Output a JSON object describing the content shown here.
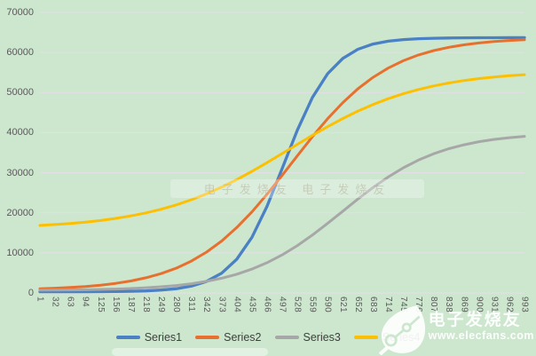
{
  "colors": {
    "background": "#cce7ce",
    "grid": "#e6dee8",
    "axis_text": "#595959",
    "legend_text": "#3f3f3f",
    "watermark_white": "rgba(255,255,255,0.93)"
  },
  "watermarks": {
    "center_text": "电子发烧友 电子发烧友",
    "corner": {
      "brand": "电子发烧友",
      "url": "www.elecfans.com",
      "logo_icon": "elecfans-leaf-circuit-logo"
    }
  },
  "chart_data": {
    "type": "line",
    "title": "",
    "xlabel": "",
    "ylabel": "",
    "ylim": [
      0,
      70000
    ],
    "y_ticks": [
      0,
      10000,
      20000,
      30000,
      40000,
      50000,
      60000,
      70000
    ],
    "grid": true,
    "legend_position": "bottom",
    "x_tick_rotation": "vertical",
    "categories": [
      "1",
      "32",
      "63",
      "94",
      "125",
      "156",
      "187",
      "218",
      "249",
      "280",
      "311",
      "342",
      "373",
      "404",
      "435",
      "466",
      "497",
      "528",
      "559",
      "590",
      "621",
      "652",
      "683",
      "714",
      "745",
      "776",
      "807",
      "838",
      "869",
      "900",
      "931",
      "962",
      "993"
    ],
    "series": [
      {
        "name": "Series1",
        "color": "#4a80c4",
        "values": [
          300,
          310,
          310,
          320,
          340,
          370,
          420,
          520,
          720,
          1070,
          1710,
          2880,
          4930,
          8410,
          13880,
          21620,
          31050,
          40650,
          48800,
          54710,
          58520,
          60810,
          62110,
          62830,
          63230,
          63450,
          63560,
          63630,
          63660,
          63680,
          63690,
          63700,
          63700
        ]
      },
      {
        "name": "Series2",
        "color": "#e8702f",
        "values": [
          1070,
          1200,
          1380,
          1620,
          1950,
          2390,
          2990,
          3780,
          4820,
          6180,
          7950,
          10190,
          12960,
          16320,
          20230,
          24640,
          29380,
          34250,
          39020,
          43490,
          47490,
          50940,
          53800,
          56120,
          57960,
          59390,
          60480,
          61300,
          61920,
          62390,
          62730,
          62990,
          63180
        ]
      },
      {
        "name": "Series3",
        "color": "#a7a7a7",
        "values": [
          680,
          710,
          750,
          800,
          880,
          980,
          1110,
          1300,
          1540,
          1870,
          2310,
          2900,
          3670,
          4680,
          5950,
          7560,
          9510,
          11830,
          14470,
          17370,
          20400,
          23430,
          26310,
          28930,
          31230,
          33160,
          34740,
          36000,
          36980,
          37740,
          38320,
          38750,
          39080
        ]
      },
      {
        "name": "Series4",
        "color": "#fdc000",
        "values": [
          16850,
          17070,
          17340,
          17670,
          18080,
          18600,
          19220,
          19980,
          20890,
          21970,
          23250,
          24730,
          26410,
          28290,
          30340,
          32520,
          34790,
          37090,
          39340,
          41500,
          43530,
          45380,
          47020,
          48470,
          49710,
          50770,
          51660,
          52390,
          53000,
          53490,
          53890,
          54210,
          54470
        ]
      }
    ]
  }
}
